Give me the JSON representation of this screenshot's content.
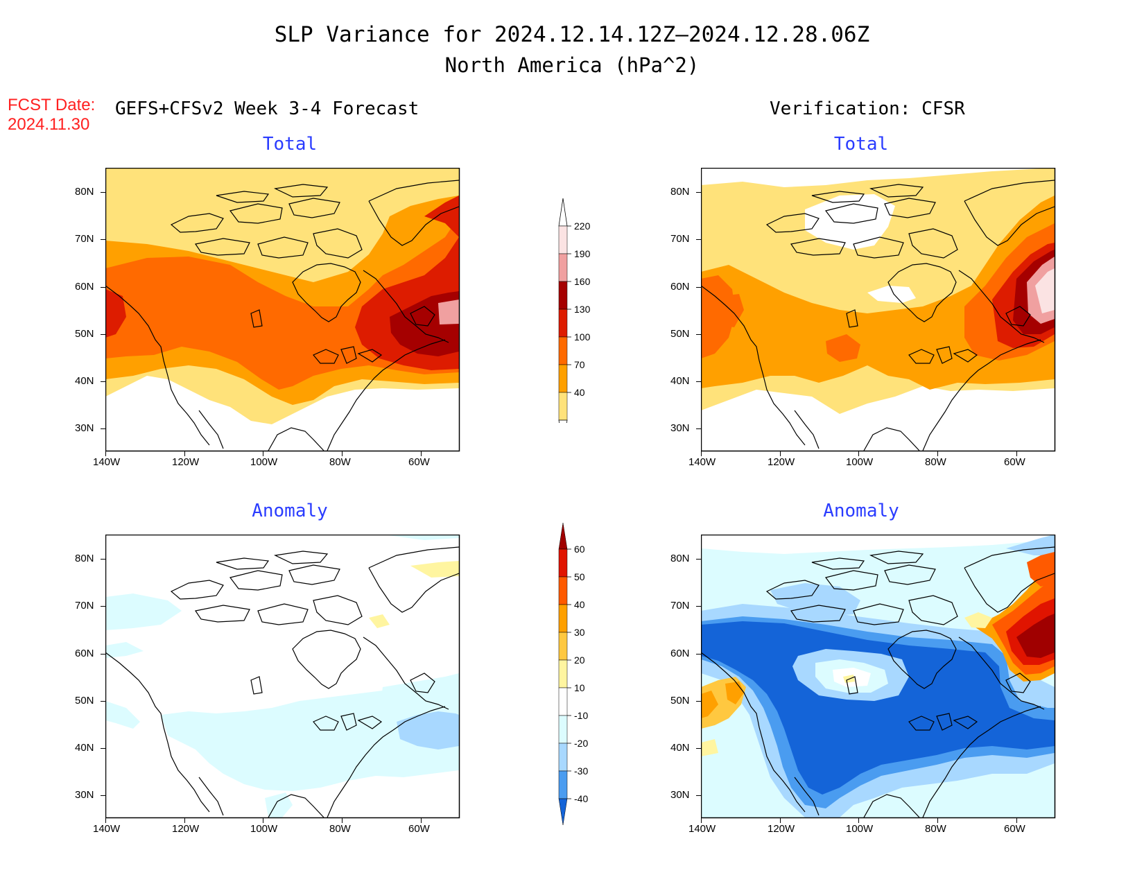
{
  "header": {
    "title": "SLP Variance for 2024.12.14.12Z–2024.12.28.06Z",
    "subtitle": "North America (hPa^2)",
    "fcst_label": "FCST Date:",
    "fcst_date": "2024.11.30",
    "left_heading": "GEFS+CFSv2 Week 3-4 Forecast",
    "right_heading": "Verification: CFSR"
  },
  "panels": [
    {
      "id": "forecast-total",
      "title": "Total"
    },
    {
      "id": "verification-total",
      "title": "Total"
    },
    {
      "id": "forecast-anomaly",
      "title": "Anomaly"
    },
    {
      "id": "verification-anomaly",
      "title": "Anomaly"
    }
  ],
  "axes": {
    "lat_labels": [
      "80N",
      "70N",
      "60N",
      "50N",
      "40N",
      "30N"
    ],
    "lon_labels": [
      "140W",
      "120W",
      "100W",
      "80W",
      "60W"
    ]
  },
  "colorbars": {
    "total": {
      "levels": [
        "220",
        "190",
        "160",
        "130",
        "100",
        "70",
        "40"
      ],
      "colors": [
        "#fbe3e3",
        "#f0a0a0",
        "#a50000",
        "#dd1c00",
        "#ff6a00",
        "#ffa000",
        "#ffe27a"
      ]
    },
    "anomaly": {
      "levels": [
        "60",
        "50",
        "40",
        "30",
        "20",
        "10",
        "-10",
        "-20",
        "-30",
        "-40"
      ],
      "colors": [
        "#a00000",
        "#e01400",
        "#ff5a00",
        "#ffa000",
        "#ffc840",
        "#fff5a0",
        "#ffffff",
        "#dcfcff",
        "#a8d8ff",
        "#4a9cf0",
        "#1464d8"
      ]
    }
  },
  "colors": {
    "panel_title": "#2a3cff",
    "fcst_date": "#ff2020"
  }
}
